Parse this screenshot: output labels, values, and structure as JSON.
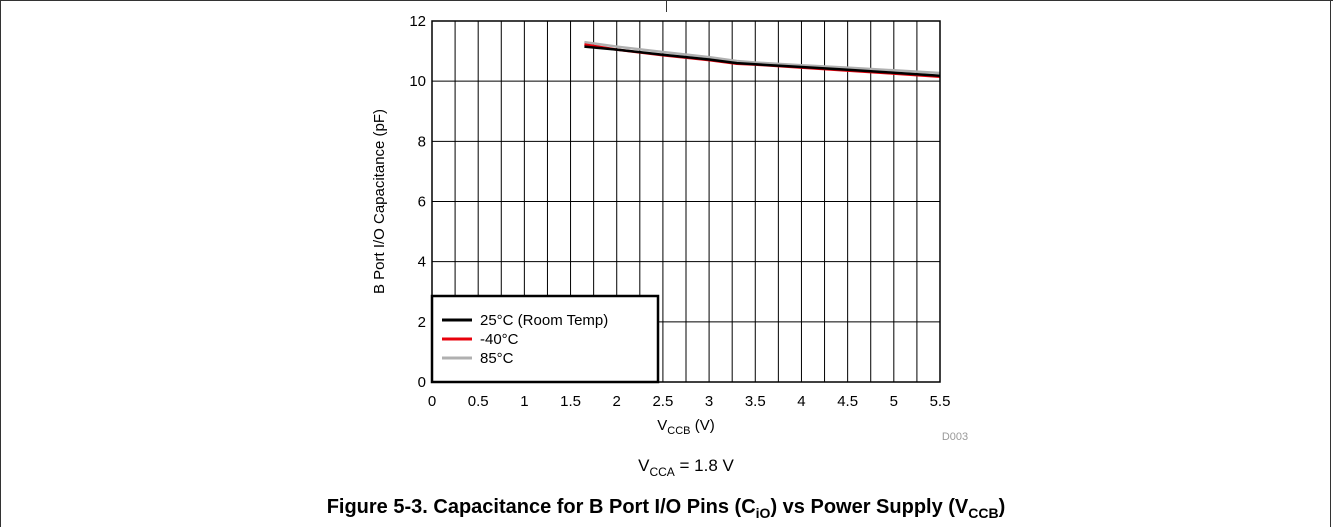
{
  "figure": {
    "caption_prefix": "Figure 5-3. Capacitance for B Port I/O Pins (C",
    "caption_sub1": "iO",
    "caption_mid": ") vs Power Supply (V",
    "caption_sub2": "CCB",
    "caption_suffix": ")",
    "condition_v": "V",
    "condition_sub": "CCA",
    "condition_rest": " = 1.8 V",
    "chart_id": "D003"
  },
  "chart_data": {
    "type": "line",
    "xlabel_main": "V",
    "xlabel_sub": "CCB",
    "xlabel_unit": " (V)",
    "ylabel": "B Port I/O Capacitance (pF)",
    "xlim": [
      0,
      5.5
    ],
    "ylim": [
      0,
      12
    ],
    "xticks": [
      0,
      0.5,
      1,
      1.5,
      2,
      2.5,
      3,
      3.5,
      4,
      4.5,
      5,
      5.5
    ],
    "xtick_labels": [
      "0",
      "0.5",
      "1",
      "1.5",
      "2",
      "2.5",
      "3",
      "3.5",
      "4",
      "4.5",
      "5",
      "5.5"
    ],
    "yticks": [
      0,
      2,
      4,
      6,
      8,
      10,
      12
    ],
    "ytick_labels": [
      "0",
      "2",
      "4",
      "6",
      "8",
      "10",
      "12"
    ],
    "grid": true,
    "legend_position": "bottom-left",
    "series": [
      {
        "name": "25°C (Room Temp)",
        "color": "#000000",
        "x": [
          1.65,
          2.0,
          2.5,
          3.0,
          3.3,
          3.5,
          4.0,
          4.5,
          5.0,
          5.5
        ],
        "y": [
          11.15,
          11.05,
          10.88,
          10.72,
          10.6,
          10.56,
          10.47,
          10.38,
          10.28,
          10.18
        ]
      },
      {
        "name": "-40°C",
        "color": "#e8000b",
        "x": [
          1.65,
          2.0,
          2.5,
          3.0,
          3.3,
          3.5,
          4.0,
          4.5,
          5.0,
          5.5
        ],
        "y": [
          11.22,
          11.05,
          10.86,
          10.7,
          10.58,
          10.55,
          10.45,
          10.35,
          10.25,
          10.15
        ]
      },
      {
        "name": "85°C",
        "color": "#b0b0b0",
        "x": [
          1.65,
          2.0,
          2.5,
          3.0,
          3.3,
          3.5,
          4.0,
          4.5,
          5.0,
          5.5
        ],
        "y": [
          11.3,
          11.15,
          10.97,
          10.8,
          10.67,
          10.62,
          10.53,
          10.45,
          10.36,
          10.27
        ]
      }
    ]
  }
}
